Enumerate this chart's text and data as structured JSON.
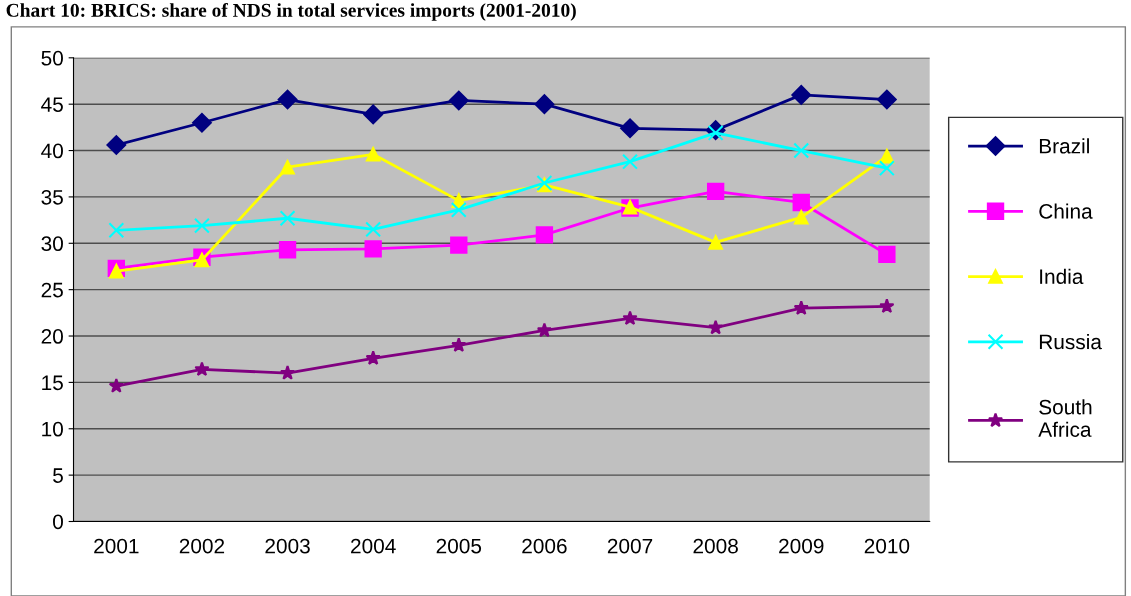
{
  "chart_data": {
    "type": "line",
    "title": "Chart 10: BRICS: share of NDS in total services imports (2001-2010)",
    "categories": [
      "2001",
      "2002",
      "2003",
      "2004",
      "2005",
      "2006",
      "2007",
      "2008",
      "2009",
      "2010"
    ],
    "series": [
      {
        "name": "Brazil",
        "color": "#000080",
        "marker": "diamond",
        "values": [
          40.6,
          43,
          45.5,
          43.9,
          45.4,
          45,
          42.4,
          42.2,
          46,
          45.5
        ]
      },
      {
        "name": "China",
        "color": "#ff00ff",
        "marker": "square",
        "values": [
          27.3,
          28.5,
          29.3,
          29.4,
          29.8,
          30.9,
          33.8,
          35.6,
          34.4,
          28.8
        ]
      },
      {
        "name": "India",
        "color": "#ffff00",
        "marker": "triangle",
        "values": [
          27,
          28.2,
          38.2,
          39.6,
          34.6,
          36.3,
          33.9,
          30.1,
          32.8,
          39.4
        ]
      },
      {
        "name": "Russia",
        "color": "#00ffff",
        "marker": "cross",
        "values": [
          31.4,
          31.9,
          32.7,
          31.5,
          33.6,
          36.5,
          38.8,
          41.9,
          40,
          38.1
        ]
      },
      {
        "name": "South Africa",
        "color": "#800080",
        "marker": "star",
        "values": [
          14.6,
          16.4,
          16,
          17.6,
          19,
          20.6,
          21.9,
          20.9,
          23,
          23.2
        ]
      }
    ],
    "ylim": [
      0,
      50
    ],
    "yticks": [
      0,
      5,
      10,
      15,
      20,
      25,
      30,
      35,
      40,
      45,
      50
    ],
    "grid": "y",
    "legend": "right"
  }
}
